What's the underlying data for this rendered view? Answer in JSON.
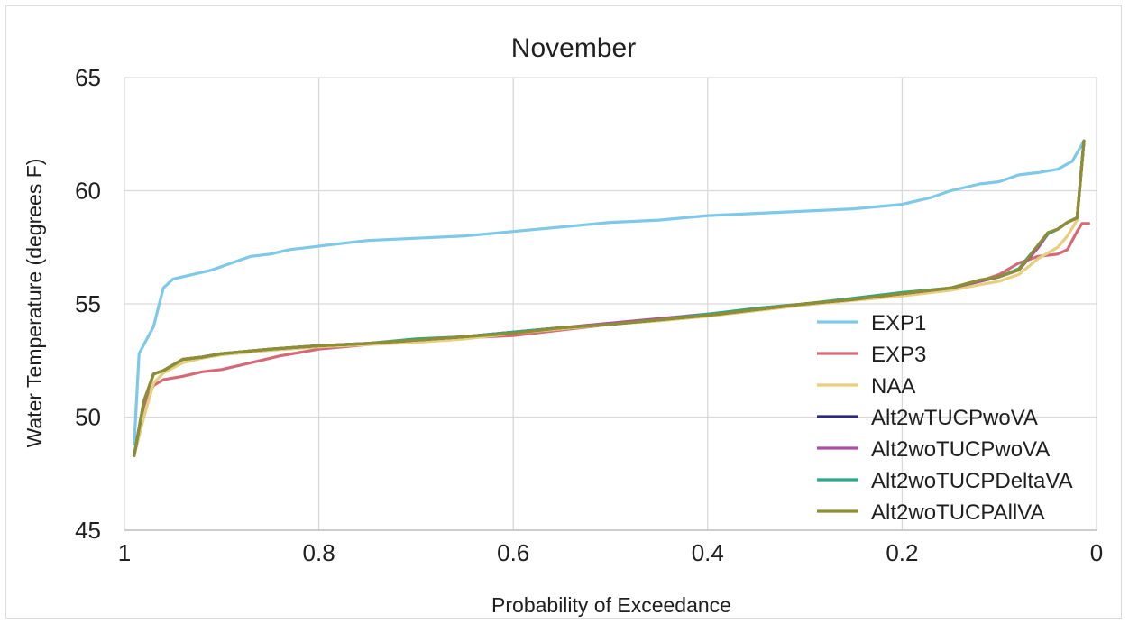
{
  "chart_data": {
    "type": "line",
    "title": "November",
    "xlabel": "Probability of Exceedance",
    "ylabel": "Water Temperature (degrees F)",
    "xlim": [
      1,
      0
    ],
    "x_reversed": true,
    "ylim": [
      45,
      65
    ],
    "xticks": [
      "1",
      "0.8",
      "0.6",
      "0.4",
      "0.2",
      "0"
    ],
    "yticks": [
      "65",
      "60",
      "55",
      "50",
      "45"
    ],
    "grid": "vertical and horizontal major gridlines",
    "legend_position": "bottom-right inside plot",
    "series": [
      {
        "name": "EXP1",
        "color": "#7ec8e9",
        "points": [
          [
            0.99,
            48.8
          ],
          [
            0.985,
            52.8
          ],
          [
            0.97,
            54.0
          ],
          [
            0.96,
            55.7
          ],
          [
            0.95,
            56.1
          ],
          [
            0.93,
            56.3
          ],
          [
            0.91,
            56.5
          ],
          [
            0.89,
            56.8
          ],
          [
            0.87,
            57.1
          ],
          [
            0.85,
            57.2
          ],
          [
            0.83,
            57.4
          ],
          [
            0.81,
            57.5
          ],
          [
            0.79,
            57.6
          ],
          [
            0.75,
            57.8
          ],
          [
            0.7,
            57.9
          ],
          [
            0.65,
            58.0
          ],
          [
            0.6,
            58.2
          ],
          [
            0.55,
            58.4
          ],
          [
            0.5,
            58.6
          ],
          [
            0.45,
            58.7
          ],
          [
            0.4,
            58.9
          ],
          [
            0.35,
            59.0
          ],
          [
            0.3,
            59.1
          ],
          [
            0.25,
            59.2
          ],
          [
            0.2,
            59.4
          ],
          [
            0.17,
            59.7
          ],
          [
            0.15,
            60.0
          ],
          [
            0.12,
            60.3
          ],
          [
            0.1,
            60.4
          ],
          [
            0.08,
            60.7
          ],
          [
            0.06,
            60.8
          ],
          [
            0.04,
            60.95
          ],
          [
            0.025,
            61.3
          ],
          [
            0.013,
            62.2
          ]
        ]
      },
      {
        "name": "EXP3",
        "color": "#d46a78",
        "points": [
          [
            0.99,
            48.3
          ],
          [
            0.98,
            50.5
          ],
          [
            0.97,
            51.4
          ],
          [
            0.96,
            51.65
          ],
          [
            0.94,
            51.8
          ],
          [
            0.92,
            52.0
          ],
          [
            0.9,
            52.1
          ],
          [
            0.88,
            52.3
          ],
          [
            0.86,
            52.5
          ],
          [
            0.84,
            52.7
          ],
          [
            0.82,
            52.85
          ],
          [
            0.8,
            53.0
          ],
          [
            0.75,
            53.2
          ],
          [
            0.7,
            53.35
          ],
          [
            0.65,
            53.5
          ],
          [
            0.6,
            53.6
          ],
          [
            0.55,
            53.85
          ],
          [
            0.5,
            54.1
          ],
          [
            0.45,
            54.3
          ],
          [
            0.4,
            54.5
          ],
          [
            0.35,
            54.8
          ],
          [
            0.3,
            55.0
          ],
          [
            0.25,
            55.2
          ],
          [
            0.2,
            55.4
          ],
          [
            0.15,
            55.7
          ],
          [
            0.12,
            56.0
          ],
          [
            0.1,
            56.3
          ],
          [
            0.08,
            56.8
          ],
          [
            0.06,
            57.1
          ],
          [
            0.04,
            57.2
          ],
          [
            0.03,
            57.4
          ],
          [
            0.02,
            58.2
          ],
          [
            0.015,
            58.55
          ],
          [
            0.008,
            58.55
          ]
        ]
      },
      {
        "name": "NAA",
        "color": "#e6cf7e",
        "points": [
          [
            0.99,
            48.3
          ],
          [
            0.98,
            50.0
          ],
          [
            0.97,
            51.5
          ],
          [
            0.96,
            51.95
          ],
          [
            0.94,
            52.4
          ],
          [
            0.92,
            52.6
          ],
          [
            0.9,
            52.75
          ],
          [
            0.85,
            52.95
          ],
          [
            0.8,
            53.1
          ],
          [
            0.75,
            53.2
          ],
          [
            0.7,
            53.3
          ],
          [
            0.65,
            53.45
          ],
          [
            0.6,
            53.7
          ],
          [
            0.55,
            53.9
          ],
          [
            0.5,
            54.1
          ],
          [
            0.45,
            54.25
          ],
          [
            0.4,
            54.45
          ],
          [
            0.35,
            54.7
          ],
          [
            0.3,
            54.95
          ],
          [
            0.25,
            55.15
          ],
          [
            0.2,
            55.35
          ],
          [
            0.15,
            55.6
          ],
          [
            0.12,
            55.85
          ],
          [
            0.1,
            56.0
          ],
          [
            0.08,
            56.3
          ],
          [
            0.06,
            57.0
          ],
          [
            0.04,
            57.5
          ],
          [
            0.03,
            58.0
          ],
          [
            0.02,
            58.7
          ],
          [
            0.013,
            62.2
          ]
        ]
      },
      {
        "name": "Alt2wTUCPwoVA",
        "color": "#2e2a7a",
        "points": [
          [
            0.99,
            48.3
          ],
          [
            0.98,
            50.7
          ],
          [
            0.97,
            51.9
          ],
          [
            0.96,
            52.05
          ],
          [
            0.94,
            52.55
          ],
          [
            0.92,
            52.65
          ],
          [
            0.9,
            52.8
          ],
          [
            0.85,
            53.0
          ],
          [
            0.8,
            53.15
          ],
          [
            0.75,
            53.25
          ],
          [
            0.7,
            53.4
          ],
          [
            0.65,
            53.55
          ],
          [
            0.6,
            53.75
          ],
          [
            0.55,
            53.95
          ],
          [
            0.5,
            54.1
          ],
          [
            0.45,
            54.3
          ],
          [
            0.4,
            54.5
          ],
          [
            0.35,
            54.75
          ],
          [
            0.3,
            55.0
          ],
          [
            0.25,
            55.2
          ],
          [
            0.2,
            55.45
          ],
          [
            0.15,
            55.7
          ],
          [
            0.12,
            56.0
          ],
          [
            0.1,
            56.2
          ],
          [
            0.08,
            56.5
          ],
          [
            0.06,
            57.5
          ],
          [
            0.05,
            58.1
          ],
          [
            0.04,
            58.3
          ],
          [
            0.03,
            58.6
          ],
          [
            0.02,
            58.8
          ],
          [
            0.013,
            62.2
          ]
        ]
      },
      {
        "name": "Alt2woTUCPwoVA",
        "color": "#b04aa4",
        "points": [
          [
            0.99,
            48.3
          ],
          [
            0.98,
            50.7
          ],
          [
            0.97,
            51.9
          ],
          [
            0.96,
            52.05
          ],
          [
            0.94,
            52.55
          ],
          [
            0.92,
            52.65
          ],
          [
            0.9,
            52.8
          ],
          [
            0.85,
            53.0
          ],
          [
            0.8,
            53.15
          ],
          [
            0.75,
            53.25
          ],
          [
            0.7,
            53.4
          ],
          [
            0.65,
            53.55
          ],
          [
            0.6,
            53.75
          ],
          [
            0.55,
            53.95
          ],
          [
            0.5,
            54.15
          ],
          [
            0.45,
            54.35
          ],
          [
            0.4,
            54.55
          ],
          [
            0.35,
            54.75
          ],
          [
            0.3,
            55.0
          ],
          [
            0.25,
            55.2
          ],
          [
            0.2,
            55.45
          ],
          [
            0.15,
            55.7
          ],
          [
            0.12,
            56.0
          ],
          [
            0.1,
            56.2
          ],
          [
            0.08,
            56.5
          ],
          [
            0.06,
            57.5
          ],
          [
            0.05,
            58.1
          ],
          [
            0.04,
            58.3
          ],
          [
            0.03,
            58.6
          ],
          [
            0.02,
            58.8
          ],
          [
            0.013,
            62.2
          ]
        ]
      },
      {
        "name": "Alt2woTUCPDeltaVA",
        "color": "#2aa889",
        "points": [
          [
            0.99,
            48.3
          ],
          [
            0.98,
            50.7
          ],
          [
            0.97,
            51.9
          ],
          [
            0.96,
            52.05
          ],
          [
            0.94,
            52.55
          ],
          [
            0.92,
            52.65
          ],
          [
            0.9,
            52.8
          ],
          [
            0.85,
            53.0
          ],
          [
            0.8,
            53.15
          ],
          [
            0.75,
            53.25
          ],
          [
            0.7,
            53.45
          ],
          [
            0.65,
            53.55
          ],
          [
            0.6,
            53.75
          ],
          [
            0.55,
            53.95
          ],
          [
            0.5,
            54.1
          ],
          [
            0.45,
            54.3
          ],
          [
            0.4,
            54.55
          ],
          [
            0.35,
            54.8
          ],
          [
            0.3,
            55.0
          ],
          [
            0.25,
            55.25
          ],
          [
            0.2,
            55.5
          ],
          [
            0.15,
            55.7
          ],
          [
            0.12,
            56.05
          ],
          [
            0.1,
            56.2
          ],
          [
            0.08,
            56.55
          ],
          [
            0.06,
            57.6
          ],
          [
            0.05,
            58.1
          ],
          [
            0.04,
            58.3
          ],
          [
            0.03,
            58.6
          ],
          [
            0.02,
            58.8
          ],
          [
            0.013,
            62.2
          ]
        ]
      },
      {
        "name": "Alt2woTUCPAllVA",
        "color": "#8f8e32",
        "points": [
          [
            0.99,
            48.3
          ],
          [
            0.98,
            50.7
          ],
          [
            0.97,
            51.9
          ],
          [
            0.96,
            52.05
          ],
          [
            0.94,
            52.55
          ],
          [
            0.92,
            52.65
          ],
          [
            0.9,
            52.8
          ],
          [
            0.85,
            53.0
          ],
          [
            0.8,
            53.15
          ],
          [
            0.75,
            53.25
          ],
          [
            0.7,
            53.4
          ],
          [
            0.65,
            53.55
          ],
          [
            0.6,
            53.7
          ],
          [
            0.55,
            53.95
          ],
          [
            0.5,
            54.1
          ],
          [
            0.45,
            54.3
          ],
          [
            0.4,
            54.5
          ],
          [
            0.35,
            54.75
          ],
          [
            0.3,
            55.0
          ],
          [
            0.25,
            55.2
          ],
          [
            0.2,
            55.45
          ],
          [
            0.15,
            55.7
          ],
          [
            0.12,
            56.05
          ],
          [
            0.1,
            56.2
          ],
          [
            0.08,
            56.5
          ],
          [
            0.06,
            57.6
          ],
          [
            0.05,
            58.15
          ],
          [
            0.04,
            58.3
          ],
          [
            0.03,
            58.6
          ],
          [
            0.02,
            58.8
          ],
          [
            0.013,
            62.2
          ]
        ]
      }
    ]
  }
}
